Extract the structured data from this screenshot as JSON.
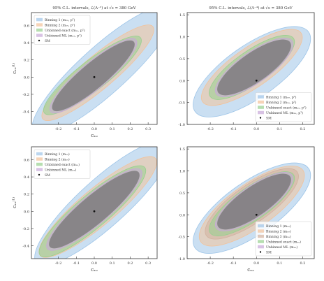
{
  "chart_data": [
    {
      "type": "scatter",
      "title": "95% C.L. intervals, ℒ(Λ⁻²) at √s = 380 GeV",
      "xlabel": "cₓₔ",
      "ylabel": "cₓₔ⁽¹⁾",
      "xlim": [
        -0.35,
        0.35
      ],
      "ylim": [
        -0.55,
        0.75
      ],
      "xticks": [
        -0.2,
        -0.1,
        0.0,
        0.1,
        0.2,
        0.3
      ],
      "yticks": [
        -0.4,
        -0.2,
        0.0,
        0.2,
        0.4,
        0.6
      ],
      "legend_position": "top-left",
      "series": [
        {
          "name": "Binning 1 (mₓₔ, pᵀ)",
          "color": "#9ec5e8",
          "shape": "ellipse",
          "center": [
            0.05,
            0.08
          ],
          "width": 0.52,
          "height": 0.55,
          "angle": 42
        },
        {
          "name": "Binning 2 (mₓₔ, pᵀ)",
          "color": "#f2c29a",
          "shape": "ellipse",
          "center": [
            0.02,
            0.05
          ],
          "width": 0.4,
          "height": 0.38,
          "angle": 40
        },
        {
          "name": "Unbinned exact (mₓₔ, pᵀ)",
          "color": "#97d08f",
          "shape": "ellipse",
          "center": [
            -0.01,
            0.02
          ],
          "width": 0.34,
          "height": 0.34,
          "angle": 38
        },
        {
          "name": "Unbinned ML (mₓₔ, pᵀ)",
          "color": "#c8a8d8",
          "shape": "ellipse",
          "center": [
            -0.005,
            0.015
          ],
          "width": 0.31,
          "height": 0.31,
          "angle": 40
        }
      ],
      "sm_point": {
        "label": "SM",
        "x": 0.0,
        "y": 0.0
      }
    },
    {
      "type": "scatter",
      "title": "95% C.L. intervals, ℒ(Λ⁻⁴) at √s = 380 GeV",
      "xlabel": "",
      "ylabel": "",
      "xlim": [
        -0.3,
        0.25
      ],
      "ylim": [
        -1.0,
        1.55
      ],
      "xticks": [
        -0.2,
        -0.1,
        0.0,
        0.1,
        0.2
      ],
      "yticks": [
        -1.0,
        -0.5,
        0.0,
        0.5,
        1.0,
        1.5
      ],
      "legend_position": "lower-right",
      "series": [
        {
          "name": "Binning 1 (mₓₔ, pᵀ)",
          "color": "#9ec5e8",
          "shape": "ellipse",
          "center": [
            -0.02,
            0.2
          ],
          "width": 0.3,
          "height": 1.2,
          "angle": 35
        },
        {
          "name": "Binning 2 (mₓₔ, pᵀ)",
          "color": "#f2c29a",
          "shape": "ellipse",
          "center": [
            -0.02,
            0.3
          ],
          "width": 0.26,
          "height": 0.9,
          "angle": 35
        },
        {
          "name": "Unbinned exact (mₓₔ, pᵀ)",
          "color": "#97d08f",
          "shape": "ellipse",
          "center": [
            -0.02,
            0.3
          ],
          "width": 0.22,
          "height": 0.75,
          "angle": 35
        },
        {
          "name": "Unbinned ML (mₓₔ, pᵀ)",
          "color": "#c8a8d8",
          "shape": "ellipse",
          "center": [
            -0.01,
            0.3
          ],
          "width": 0.2,
          "height": 0.7,
          "angle": 35
        }
      ],
      "sm_point": {
        "label": "SM",
        "x": 0.0,
        "y": 0.0
      }
    },
    {
      "type": "scatter",
      "title": "",
      "xlabel": "cₓₔ",
      "ylabel": "cₓₔ⁽¹⁾",
      "xlim": [
        -0.35,
        0.35
      ],
      "ylim": [
        -0.55,
        0.75
      ],
      "xticks": [
        -0.2,
        -0.1,
        0.0,
        0.1,
        0.2,
        0.3
      ],
      "yticks": [
        -0.4,
        -0.2,
        0.0,
        0.2,
        0.4,
        0.6
      ],
      "legend_position": "top-left",
      "series": [
        {
          "name": "Binning 1 (mₓₔ)",
          "color": "#9ec5e8",
          "shape": "ellipse",
          "center": [
            0.05,
            0.1
          ],
          "width": 0.5,
          "height": 0.55,
          "angle": 42
        },
        {
          "name": "Binning 2 (mₓₔ)",
          "color": "#f2c29a",
          "shape": "ellipse",
          "center": [
            0.02,
            0.05
          ],
          "width": 0.42,
          "height": 0.42,
          "angle": 40
        },
        {
          "name": "Unbinned exact (mₓₔ)",
          "color": "#97d08f",
          "shape": "ellipse",
          "center": [
            -0.01,
            0.0
          ],
          "width": 0.38,
          "height": 0.38,
          "angle": 40
        },
        {
          "name": "Unbinned ML (mₓₔ)",
          "color": "#c8a8d8",
          "shape": "ellipse",
          "center": [
            0.0,
            0.02
          ],
          "width": 0.34,
          "height": 0.34,
          "angle": 40
        }
      ],
      "sm_point": {
        "label": "SM",
        "x": 0.0,
        "y": 0.0
      }
    },
    {
      "type": "scatter",
      "title": "",
      "xlabel": "cₓₔ",
      "ylabel": "",
      "xlim": [
        -0.3,
        0.25
      ],
      "ylim": [
        -1.0,
        1.55
      ],
      "xticks": [
        -0.2,
        -0.1,
        0.0,
        0.1,
        0.2
      ],
      "yticks": [
        -1.0,
        -0.5,
        0.0,
        0.5,
        1.0,
        1.5
      ],
      "legend_position": "lower-right",
      "series": [
        {
          "name": "Binning 1 (mₓₔ)",
          "color": "#9ec5e8",
          "shape": "ellipse",
          "center": [
            -0.02,
            0.15
          ],
          "width": 0.3,
          "height": 1.2,
          "angle": 35
        },
        {
          "name": "Binning 2 (mₓₔ)",
          "color": "#f2c29a",
          "shape": "ellipse",
          "center": [
            -0.02,
            0.2
          ],
          "width": 0.27,
          "height": 1.0,
          "angle": 35
        },
        {
          "name": "Binning 3 (mₓₔ)",
          "color": "#d2b2a0",
          "shape": "ellipse",
          "center": [
            -0.02,
            0.25
          ],
          "width": 0.24,
          "height": 0.85,
          "angle": 35
        },
        {
          "name": "Unbinned exact (mₓₔ)",
          "color": "#97d08f",
          "shape": "ellipse",
          "center": [
            -0.02,
            0.25
          ],
          "width": 0.22,
          "height": 0.75,
          "angle": 35
        },
        {
          "name": "Unbinned ML (mₓₔ)",
          "color": "#c8a8d8",
          "shape": "ellipse",
          "center": [
            -0.01,
            0.3
          ],
          "width": 0.2,
          "height": 0.7,
          "angle": 35
        }
      ],
      "sm_point": {
        "label": "SM",
        "x": 0.0,
        "y": 0.0
      }
    }
  ]
}
